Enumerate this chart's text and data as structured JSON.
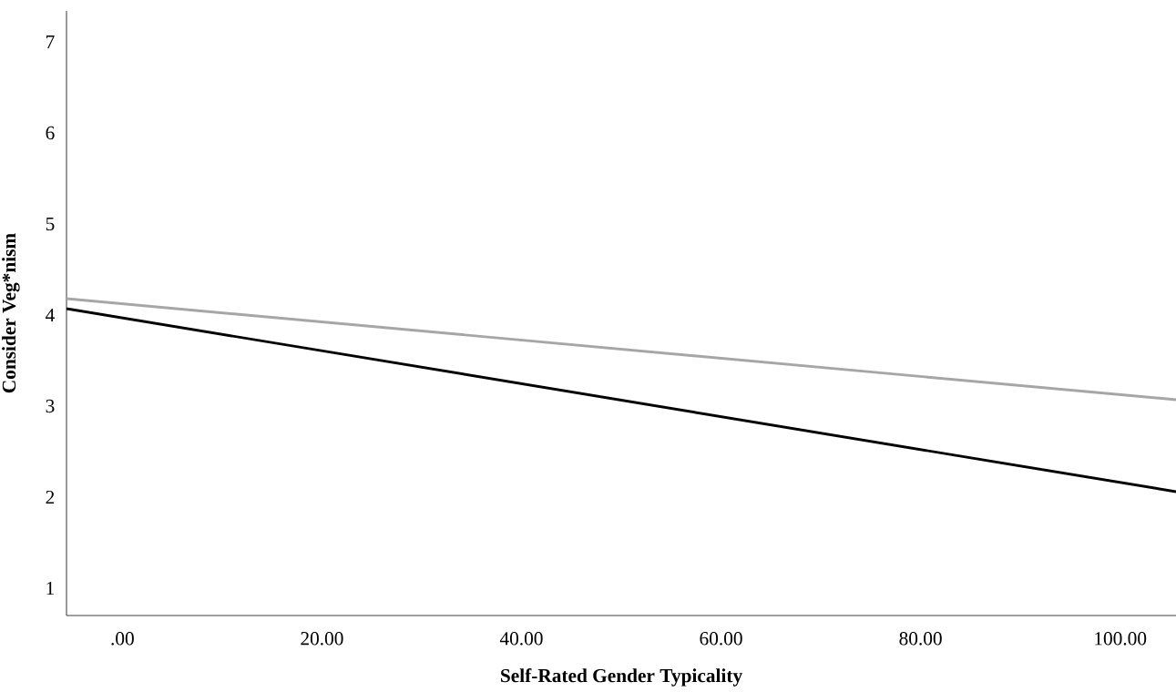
{
  "chart_data": {
    "type": "line",
    "xlabel": "Self-Rated Gender Typicality",
    "ylabel": "Consider Veg*nism",
    "x": [
      -5.6,
      105.6
    ],
    "series": [
      {
        "color": "#a6a6a6",
        "values": [
          4.18,
          3.07
        ]
      },
      {
        "color": "#000000",
        "values": [
          4.07,
          2.06
        ]
      }
    ],
    "xlim": [
      -5.6,
      105.6
    ],
    "ylim": [
      0.7,
      7.34
    ],
    "xticks": [
      {
        "value": 0,
        "label": ".00"
      },
      {
        "value": 20,
        "label": "20.00"
      },
      {
        "value": 40,
        "label": "40.00"
      },
      {
        "value": 60,
        "label": "60.00"
      },
      {
        "value": 80,
        "label": "80.00"
      },
      {
        "value": 100,
        "label": "100.00"
      }
    ],
    "yticks": [
      1,
      2,
      3,
      4,
      5,
      6,
      7
    ],
    "grid": false,
    "marker": "none",
    "line_style": "solid"
  }
}
